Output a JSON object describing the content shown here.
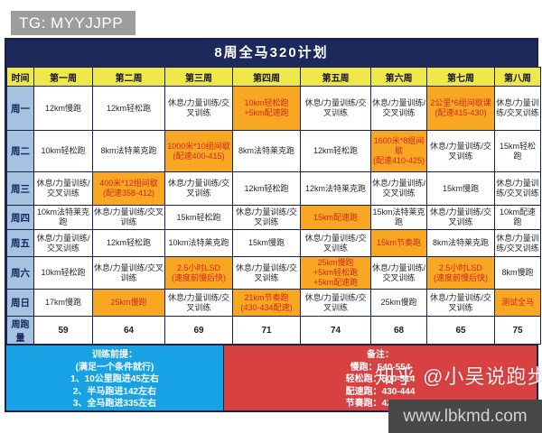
{
  "banner": {
    "text": "TG: MYYJJPP"
  },
  "title": "8周全马320计划",
  "table": {
    "headers": [
      "时间",
      "第一周",
      "第二周",
      "第三周",
      "第四周",
      "第五周",
      "第六周",
      "第七周",
      "第八周"
    ],
    "rows": [
      {
        "label": "周一",
        "cells": [
          {
            "text": "12km慢跑",
            "hl": false
          },
          {
            "text": "12km轻松跑",
            "hl": false
          },
          {
            "text": "休息/力量训练/交叉训练",
            "hl": false
          },
          {
            "text": "10km轻松跑\n+5km配速跑",
            "hl": true
          },
          {
            "text": "休息/力量训练/交叉训练",
            "hl": false
          },
          {
            "text": "休息/力量训练/交叉训练",
            "hl": false
          },
          {
            "text": "2公里*6组间歇课\n(配速415-430)",
            "hl": true
          },
          {
            "text": "休息/力量训练/交叉训练",
            "hl": false
          }
        ]
      },
      {
        "label": "周二",
        "cells": [
          {
            "text": "10km轻松跑",
            "hl": false
          },
          {
            "text": "8km法特莱克跑",
            "hl": false
          },
          {
            "text": "1000米*10组间歇\n(配速400-415)",
            "hl": true
          },
          {
            "text": "8km法特莱克跑",
            "hl": false
          },
          {
            "text": "12km轻松跑",
            "hl": false
          },
          {
            "text": "1600米*8组间歇\n(配速410-425)",
            "hl": true
          },
          {
            "text": "休息/力量训练/交叉训练",
            "hl": false
          },
          {
            "text": "15km轻松跑",
            "hl": false
          }
        ]
      },
      {
        "label": "周三",
        "cells": [
          {
            "text": "休息/力量训练/交叉训练",
            "hl": false
          },
          {
            "text": "400米*12组间歇\n(配速358-412)",
            "hl": true
          },
          {
            "text": "休息/力量训练/交叉训练",
            "hl": false
          },
          {
            "text": "12km轻松跑",
            "hl": false
          },
          {
            "text": "12km法特莱克跑",
            "hl": false
          },
          {
            "text": "休息/力量训练/交叉训练",
            "hl": false
          },
          {
            "text": "15km慢跑",
            "hl": false
          },
          {
            "text": "休息/力量训练/交叉训练",
            "hl": false
          }
        ]
      },
      {
        "label": "周四",
        "cells": [
          {
            "text": "10km法特莱克跑",
            "hl": false
          },
          {
            "text": "休息/力量训练/交叉训练",
            "hl": false
          },
          {
            "text": "15km轻松跑",
            "hl": false
          },
          {
            "text": "休息/力量训练/交叉训练",
            "hl": false
          },
          {
            "text": "15km配速跑",
            "hl": true
          },
          {
            "text": "15km法特莱克跑",
            "hl": false
          },
          {
            "text": "休息/力量训练/交叉训练",
            "hl": false
          },
          {
            "text": "10km配速跑",
            "hl": false
          }
        ]
      },
      {
        "label": "周五",
        "cells": [
          {
            "text": "休息/力量训练/交叉训练",
            "hl": false
          },
          {
            "text": "12km轻松跑",
            "hl": false
          },
          {
            "text": "10km法特莱克跑",
            "hl": false
          },
          {
            "text": "15km慢跑",
            "hl": false
          },
          {
            "text": "休息/力量训练/交叉训练",
            "hl": false
          },
          {
            "text": "15km节奏跑",
            "hl": true
          },
          {
            "text": "8km法特莱克跑",
            "hl": false
          },
          {
            "text": "休息/力量训练/交叉训练",
            "hl": false
          }
        ]
      },
      {
        "label": "周六",
        "cells": [
          {
            "text": "10km轻松跑",
            "hl": false
          },
          {
            "text": "休息/力量训练/交叉训练",
            "hl": false
          },
          {
            "text": "2.5小时LSD\n(速度前慢后快)",
            "hl": true
          },
          {
            "text": "休息/力量训练/交叉训练",
            "hl": false
          },
          {
            "text": "25km慢跑\n+5km轻松跑\n+5km配速跑",
            "hl": true
          },
          {
            "text": "休息/力量训练/交叉训练",
            "hl": false
          },
          {
            "text": "2.5小时LSD\n(速度前慢后快)",
            "hl": true
          },
          {
            "text": "8km慢跑",
            "hl": false
          }
        ]
      },
      {
        "label": "周日",
        "cells": [
          {
            "text": "17km慢跑",
            "hl": false
          },
          {
            "text": "25km慢跑",
            "hl": true
          },
          {
            "text": "休息/力量训练/交叉训练",
            "hl": false
          },
          {
            "text": "21km节奏跑\n(430-434配速)",
            "hl": true
          },
          {
            "text": "休息/力量训练/交叉训练",
            "hl": false
          },
          {
            "text": "25km慢跑",
            "hl": false
          },
          {
            "text": "休息/力量训练/交叉训练",
            "hl": false
          },
          {
            "text": "测试全马",
            "hl": true
          }
        ]
      }
    ],
    "mileage": {
      "label": "周跑量",
      "values": [
        "59",
        "64",
        "69",
        "71",
        "74",
        "68",
        "65",
        "75"
      ]
    }
  },
  "notes_left": {
    "lines": [
      "训练前提：",
      "(满足一个条件就行)",
      "1、10公里跑进45左右",
      "2、半马跑进142左右",
      "3、全马跑进335左右"
    ]
  },
  "notes_right": {
    "lines": [
      "备注：",
      "慢跑：540-554",
      "轻松跑：500-514",
      "配速跑：430-444",
      "节奏跑：420-434"
    ]
  },
  "watermark": "知乎 @小吴说跑步",
  "footer": "www.lbkmd.com",
  "colors": {
    "banner_bg": "#9d9d9d",
    "title_bg": "#1b2a5a",
    "header_bg": "#f0e84b",
    "day_label_bg": "#a5c3e1",
    "highlight_bg": "#f7a722",
    "highlight_text": "#d7261f",
    "border": "#17224d",
    "notes_left_bg": "#18a2e6",
    "notes_right_bg": "#d84141",
    "footer_bg": "#484848"
  }
}
